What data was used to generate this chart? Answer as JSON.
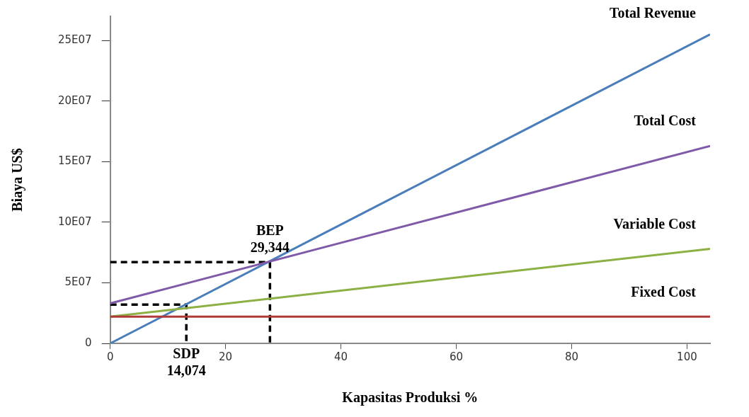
{
  "chart_data": {
    "type": "line",
    "xlabel": "Kapasitas Produksi %",
    "ylabel": "Biaya US$",
    "xlim": [
      0,
      104
    ],
    "xticks": [
      0,
      20,
      40,
      60,
      80,
      100
    ],
    "ylim": [
      0,
      270000000
    ],
    "yticks": [
      {
        "value": 0,
        "label": "0"
      },
      {
        "value": 50000000,
        "label": "5E07"
      },
      {
        "value": 100000000,
        "label": "10E07"
      },
      {
        "value": 150000000,
        "label": "15E07"
      },
      {
        "value": 200000000,
        "label": "20E07"
      },
      {
        "value": 250000000,
        "label": "25E07"
      }
    ],
    "grid": false,
    "legend": false,
    "marker": "none",
    "series": [
      {
        "name": "Fixed Cost",
        "color": "#b03a3a",
        "x": [
          0,
          104
        ],
        "values": [
          22000000,
          22000000
        ]
      },
      {
        "name": "Variable Cost",
        "color": "#8cb043",
        "x": [
          0,
          104
        ],
        "values": [
          22000000,
          78000000
        ]
      },
      {
        "name": "Total Cost",
        "color": "#7f5aa8",
        "x": [
          0,
          104
        ],
        "values": [
          33000000,
          163000000
        ]
      },
      {
        "name": "Total Revenue",
        "color": "#4a7ebb",
        "x": [
          0,
          104
        ],
        "values": [
          0,
          255000000
        ]
      },
      {
        "color": "#000000",
        "line_style": "dashed",
        "x": [
          0,
          27.7,
          27.7
        ],
        "values": [
          67000000,
          67000000,
          0
        ]
      },
      {
        "color": "#000000",
        "line_style": "dashed",
        "x": [
          0,
          13.2,
          13.2
        ],
        "values": [
          32000000,
          32000000,
          0
        ]
      }
    ],
    "annotations": [
      {
        "text": "BEP\n29,344",
        "x": 27.7,
        "y": 67000000
      },
      {
        "text": "SDP\n14,074",
        "x": 13.2,
        "y": 0
      }
    ]
  }
}
